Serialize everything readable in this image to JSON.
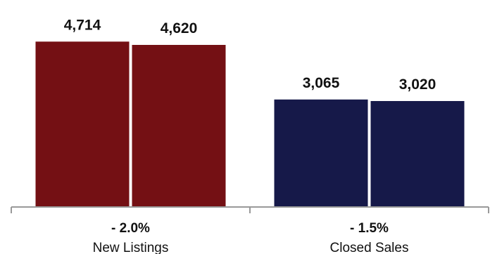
{
  "chart_data": {
    "type": "bar",
    "title": "",
    "xlabel": "",
    "ylabel": "",
    "categories": [
      "New Listings",
      "Closed Sales"
    ],
    "changes": [
      "- 2.0%",
      "- 1.5%"
    ],
    "series": [
      {
        "values": [
          4714,
          4620
        ],
        "color": "#741014"
      },
      {
        "values": [
          3065,
          3020
        ],
        "color": "#161949"
      }
    ],
    "value_labels": [
      [
        "4,714",
        "4,620"
      ],
      [
        "3,065",
        "3,020"
      ]
    ],
    "ylim": [
      0,
      5100
    ],
    "grid": false,
    "legend": "none",
    "axis_color": "#999999"
  }
}
